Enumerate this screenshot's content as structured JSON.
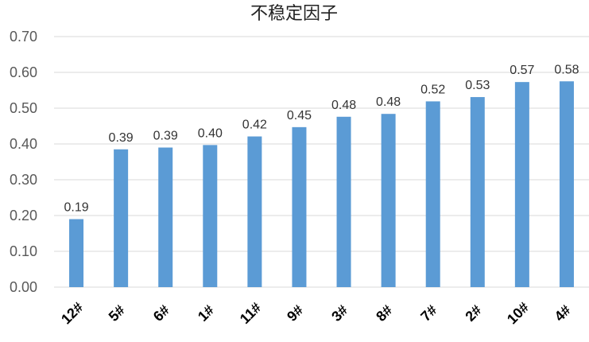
{
  "chart_data": {
    "type": "bar",
    "title": "不稳定因子",
    "xlabel": "",
    "ylabel": "",
    "categories": [
      "12#",
      "5#",
      "6#",
      "1#",
      "11#",
      "9#",
      "3#",
      "8#",
      "7#",
      "2#",
      "10#",
      "4#"
    ],
    "values": [
      0.19,
      0.385,
      0.39,
      0.397,
      0.421,
      0.447,
      0.476,
      0.484,
      0.519,
      0.531,
      0.573,
      0.575
    ],
    "value_labels": [
      "0.19",
      "0.39",
      "0.39",
      "0.40",
      "0.42",
      "0.45",
      "0.48",
      "0.48",
      "0.52",
      "0.53",
      "0.57",
      "0.58"
    ],
    "ylim": [
      0,
      0.7
    ],
    "yticks": [
      "0.00",
      "0.10",
      "0.20",
      "0.30",
      "0.40",
      "0.50",
      "0.60",
      "0.70"
    ],
    "grid": true,
    "legend": "none",
    "bar_color": "#5B9BD5",
    "grid_color": "#D9D9D9"
  }
}
